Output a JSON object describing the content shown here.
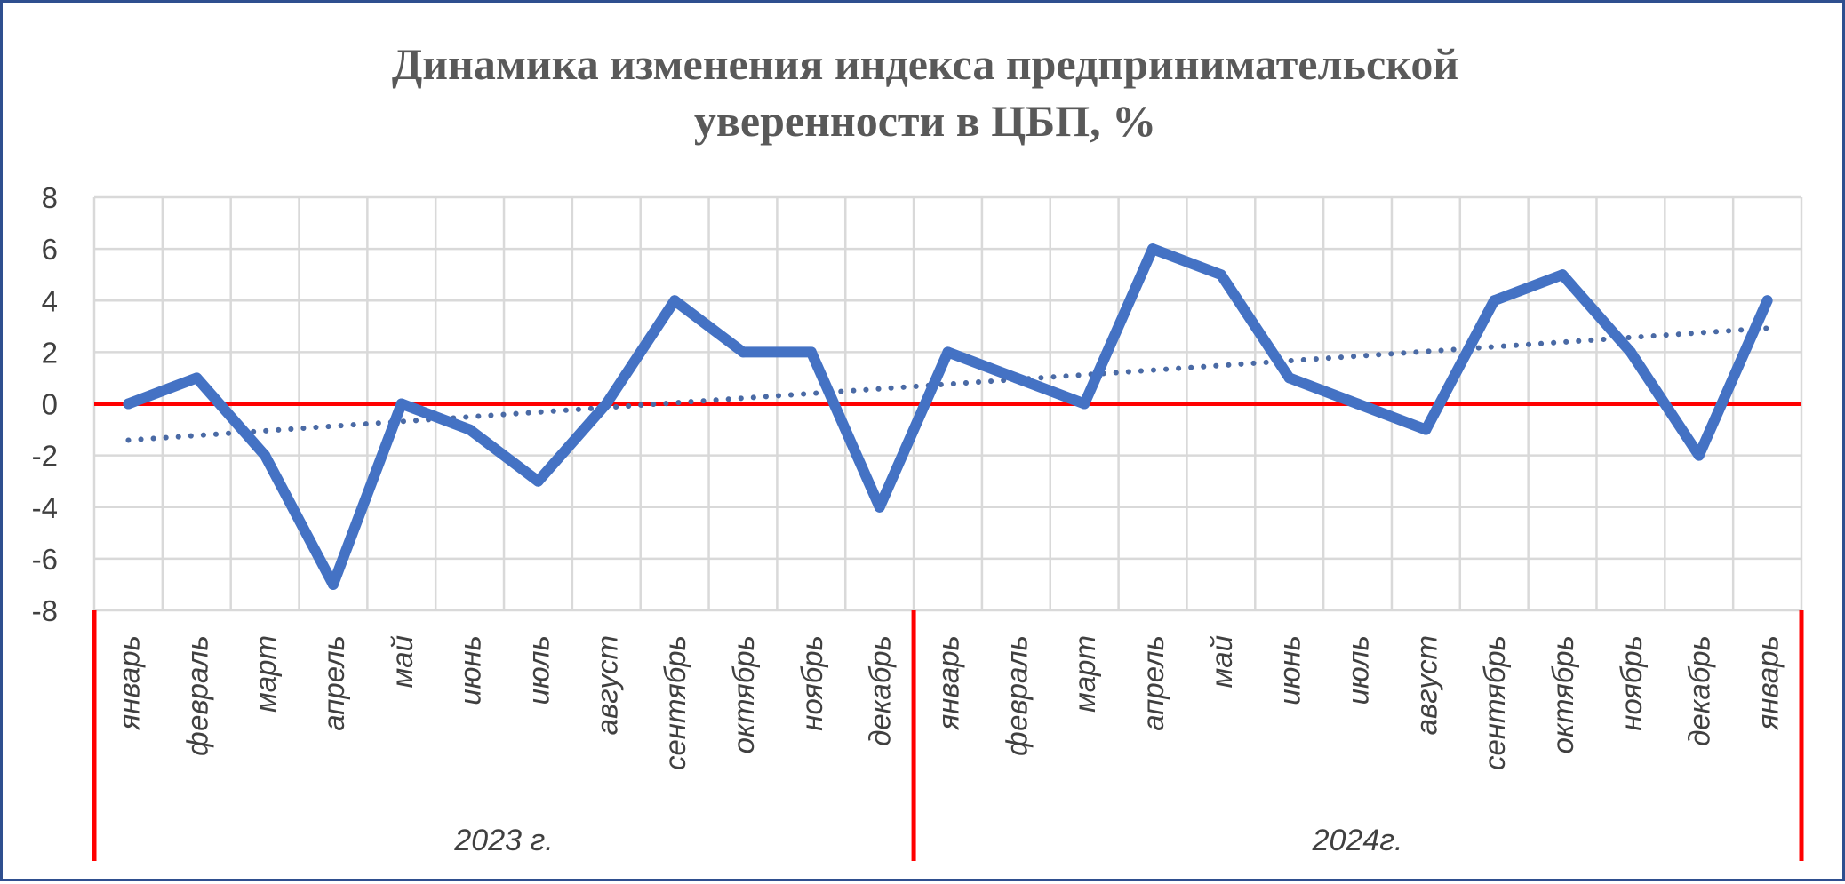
{
  "chart_data": {
    "type": "line",
    "title_lines": [
      "Динамика изменения индекса предпринимательской",
      "уверенности в ЦБП, %"
    ],
    "xlabel": "",
    "ylabel": "",
    "ylim": [
      -8,
      8
    ],
    "yticks": [
      8,
      6,
      4,
      2,
      0,
      -2,
      -4,
      -6,
      -8
    ],
    "ytick_labels": [
      "8",
      "6",
      "4",
      "2",
      "0",
      "-2",
      "-4",
      "-6",
      "-8"
    ],
    "categories": [
      "январь",
      "февраль",
      "март",
      "апрель",
      "май",
      "июнь",
      "июль",
      "август",
      "сентябрь",
      "октябрь",
      "ноябрь",
      "декабрь",
      "январь",
      "февраль",
      "март",
      "апрель",
      "май",
      "июнь",
      "июль",
      "август",
      "сентябрь",
      "октябрь",
      "ноябрь",
      "декабрь",
      "январь"
    ],
    "groups": [
      {
        "label": "2023 г.",
        "start": 0,
        "end": 11
      },
      {
        "label": "2024г.",
        "start": 12,
        "end": 24
      }
    ],
    "series": [
      {
        "values": [
          0,
          1,
          -2,
          -7,
          0,
          -1,
          -3,
          0,
          4,
          2,
          2,
          -4,
          2,
          1,
          0,
          6,
          5,
          1,
          0,
          -1,
          4,
          5,
          2,
          -2,
          4
        ],
        "color": "#4472c4"
      }
    ],
    "trendline": {
      "type": "linear",
      "color": "#4a6aa5",
      "style": "dotted"
    },
    "reference_line": {
      "y": 0,
      "color": "#ff0000"
    },
    "grid": true
  }
}
